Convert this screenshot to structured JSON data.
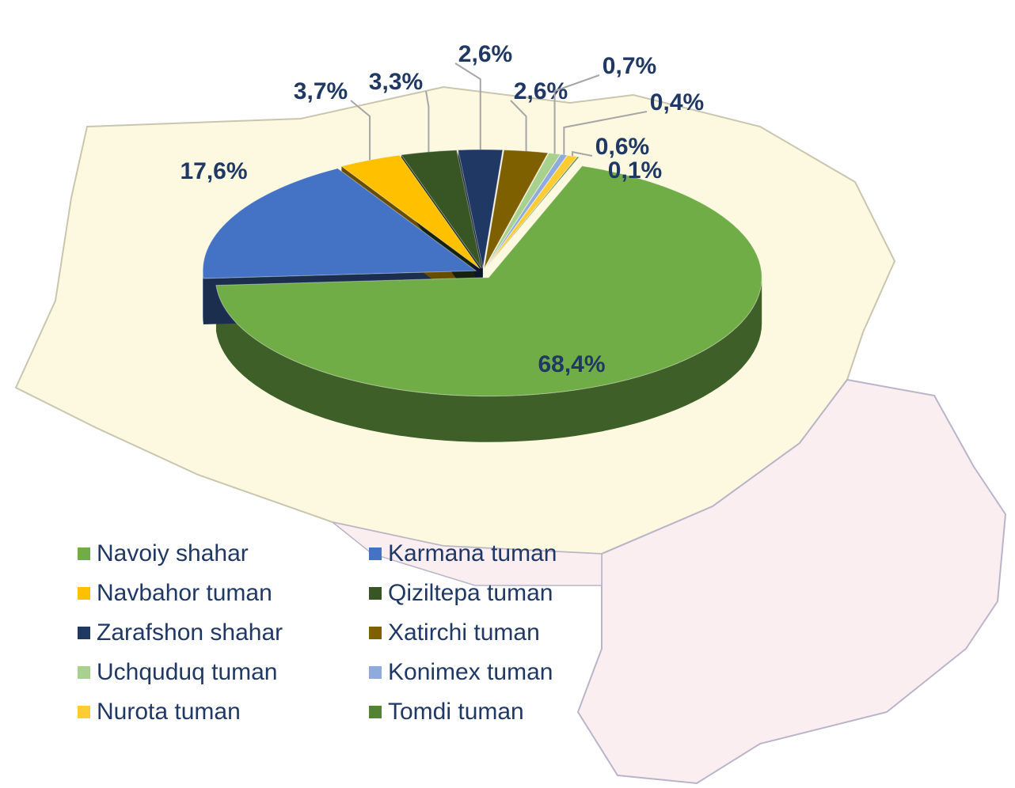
{
  "chart_data": {
    "type": "pie3d",
    "categories": [
      "Navoiy shahar",
      "Karmana tuman",
      "Navbahor tuman",
      "Qiziltepa tuman",
      "Zarafshon shahar",
      "Xatirchi tuman",
      "Uchquduq tuman",
      "Konimex tuman",
      "Nurota tuman",
      "Tomdi tuman"
    ],
    "values": [
      68.4,
      17.6,
      3.7,
      3.3,
      2.6,
      2.6,
      0.7,
      0.4,
      0.6,
      0.1
    ],
    "value_labels": [
      "68,4%",
      "17,6%",
      "3,7%",
      "3,3%",
      "2,6%",
      "2,6%",
      "0,7%",
      "0,4%",
      "0,6%",
      "0,1%"
    ],
    "colors": [
      "#70ad47",
      "#4472c4",
      "#ffc000",
      "#375623",
      "#203864",
      "#7f6000",
      "#a9d18e",
      "#8faadc",
      "#ffcc33",
      "#548235"
    ],
    "legend": "bottom"
  }
}
